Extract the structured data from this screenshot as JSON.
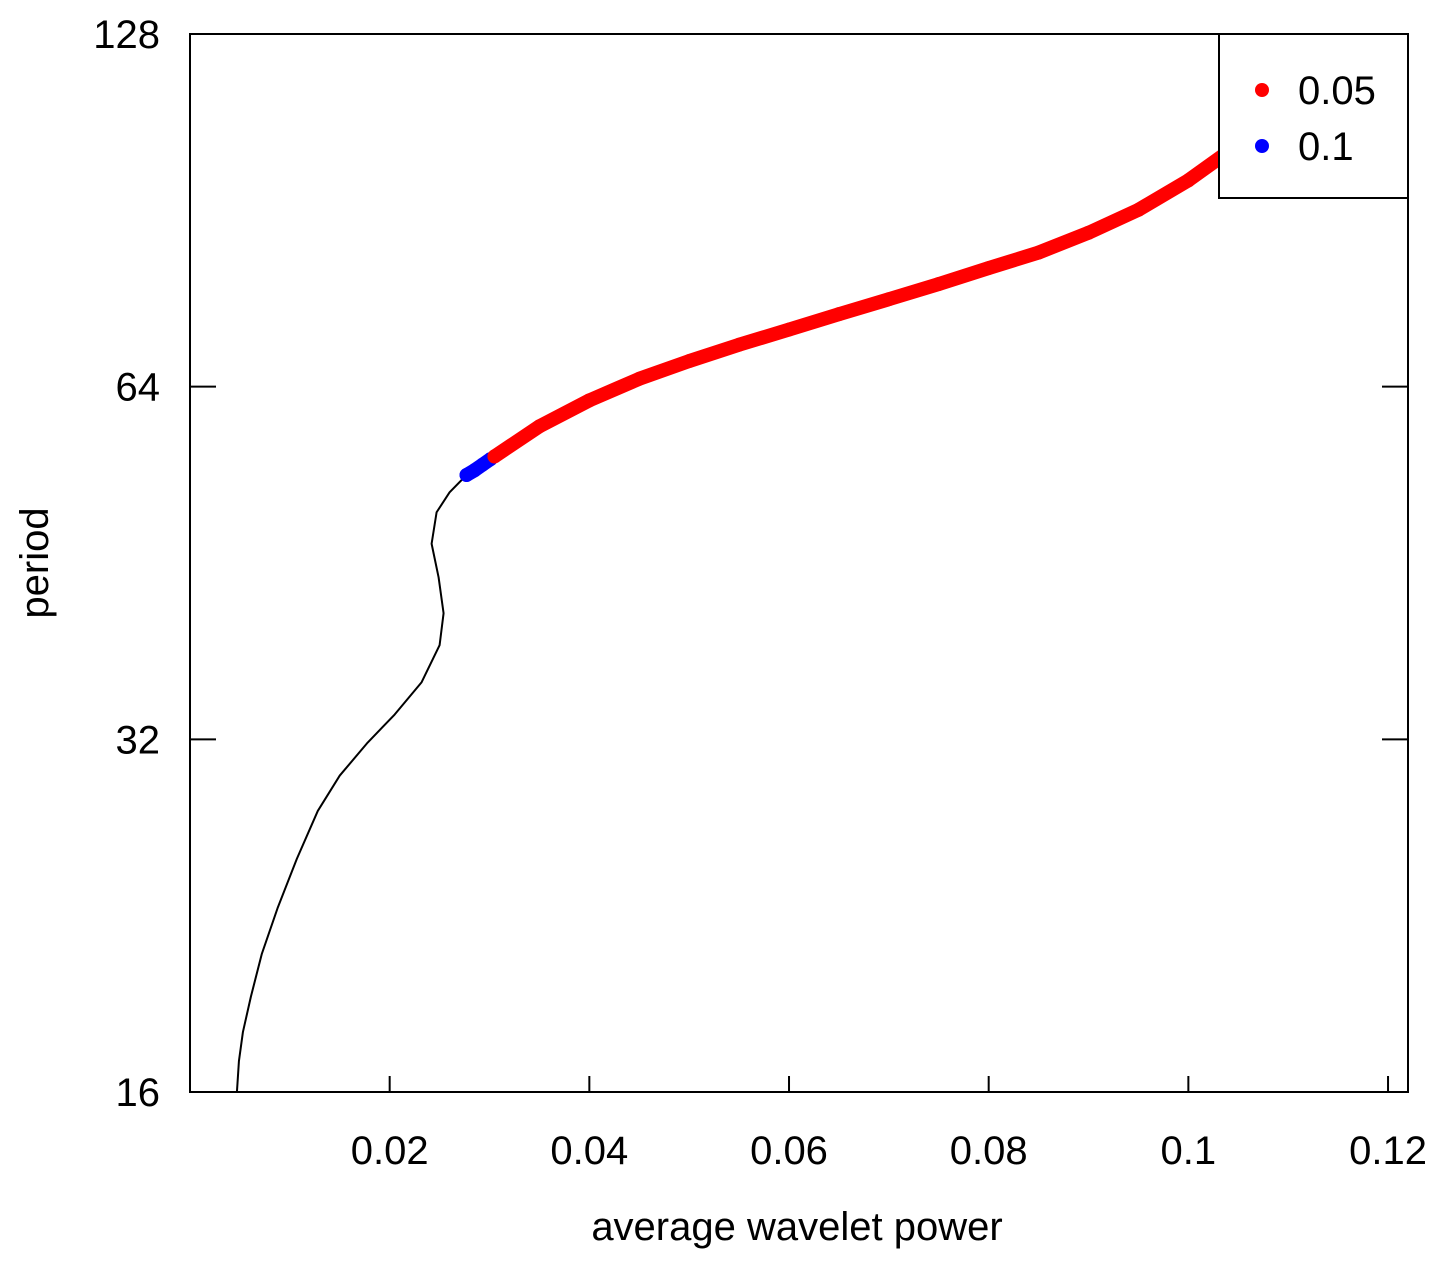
{
  "chart_data": {
    "type": "line",
    "xlabel": "average wavelet power",
    "ylabel": "period",
    "xlim": [
      0.0,
      0.122
    ],
    "ylim": [
      16,
      128
    ],
    "y_scale": "log2",
    "x_ticks": [
      0.02,
      0.04,
      0.06,
      0.08,
      0.1,
      0.12
    ],
    "x_tick_labels": [
      "0.02",
      "0.04",
      "0.06",
      "0.08",
      "0.1",
      "0.12"
    ],
    "y_ticks": [
      16,
      32,
      64,
      128
    ],
    "y_tick_labels": [
      "16",
      "32",
      "64",
      "128"
    ],
    "grid": false,
    "legend": {
      "placement": "top-right",
      "entries": [
        {
          "label": "0.05",
          "color": "#ff0000"
        },
        {
          "label": "0.1",
          "color": "#0000ff"
        }
      ]
    },
    "series": [
      {
        "color": "#000000",
        "style": "line",
        "points": [
          [
            0.0047,
            16.0
          ],
          [
            0.0049,
            17.0
          ],
          [
            0.0053,
            18.0
          ],
          [
            0.0061,
            19.3
          ],
          [
            0.0072,
            21.0
          ],
          [
            0.0088,
            23.0
          ],
          [
            0.0107,
            25.3
          ],
          [
            0.0128,
            27.8
          ],
          [
            0.015,
            29.8
          ],
          [
            0.0178,
            31.8
          ],
          [
            0.0205,
            33.6
          ],
          [
            0.0232,
            35.8
          ],
          [
            0.025,
            38.5
          ],
          [
            0.0254,
            41.0
          ],
          [
            0.0249,
            44.0
          ],
          [
            0.0242,
            47.0
          ],
          [
            0.0247,
            50.0
          ],
          [
            0.026,
            52.0
          ],
          [
            0.0277,
            53.8
          ]
        ]
      },
      {
        "color": "#0000ff",
        "style": "points",
        "points": [
          [
            0.0277,
            53.8
          ],
          [
            0.0285,
            54.3
          ],
          [
            0.0293,
            54.9
          ],
          [
            0.0301,
            55.5
          ]
        ]
      },
      {
        "color": "#ff0000",
        "style": "points",
        "points": [
          [
            0.0305,
            55.8
          ],
          [
            0.035,
            59.2
          ],
          [
            0.04,
            62.3
          ],
          [
            0.045,
            65.0
          ],
          [
            0.05,
            67.3
          ],
          [
            0.055,
            69.5
          ],
          [
            0.06,
            71.6
          ],
          [
            0.065,
            73.8
          ],
          [
            0.07,
            76.0
          ],
          [
            0.075,
            78.3
          ],
          [
            0.08,
            80.8
          ],
          [
            0.085,
            83.3
          ],
          [
            0.09,
            86.6
          ],
          [
            0.095,
            90.6
          ],
          [
            0.1,
            96.0
          ],
          [
            0.105,
            103.0
          ],
          [
            0.11,
            111.0
          ],
          [
            0.115,
            120.0
          ],
          [
            0.118,
            127.2
          ]
        ]
      }
    ]
  }
}
